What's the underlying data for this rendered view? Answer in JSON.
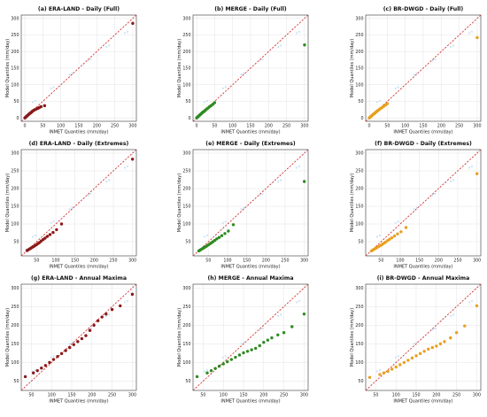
{
  "figure": {
    "diag_color": "#cc2222",
    "watermark_color": "#cfe6f7",
    "panel_titles": [
      "(a) ERA-LAND - Daily (Full)",
      "(b) MERGE - Daily (Full)",
      "(c) BR-DWGD - Daily (Full)",
      "(d) ERA-LAND - Daily (Extremes)",
      "(e) MERGE - Daily (Extremes)",
      "(f) BR-DWGD - Daily (Extremes)",
      "(g) ERA-LAND - Annual Maxima",
      "(h) MERGE - Annual Maxima",
      "(i) BR-DWGD - Annual Maxima"
    ]
  },
  "chart_data": [
    {
      "type": "scatter",
      "title": "(a) ERA-LAND - Daily (Full)",
      "xlabel": "INMET Quantiles (mm/day)",
      "ylabel": "Model Quantiles (mm/day)",
      "xlim": [
        -10,
        310
      ],
      "ylim": [
        -10,
        310
      ],
      "xticks": [
        0,
        50,
        100,
        150,
        200,
        250,
        300
      ],
      "yticks": [
        0,
        50,
        100,
        150,
        200,
        250,
        300
      ],
      "color": "#8b1a1a",
      "grid": true,
      "reference_line": "1:1",
      "series": [
        {
          "x": [
            0,
            2,
            4,
            6,
            8,
            10,
            12,
            14,
            16,
            18,
            20,
            22,
            25,
            28,
            32,
            36,
            40,
            45,
            55,
            300
          ],
          "y": [
            0,
            2,
            4,
            6,
            8,
            10,
            12,
            14,
            15,
            17,
            19,
            21,
            23,
            25,
            27,
            29,
            31,
            34,
            37,
            285
          ]
        }
      ]
    },
    {
      "type": "scatter",
      "title": "(b) MERGE - Daily (Full)",
      "xlabel": "INMET Quantiles (mm/day)",
      "ylabel": "Model Quantiles (mm/day)",
      "xlim": [
        -10,
        310
      ],
      "ylim": [
        -10,
        310
      ],
      "xticks": [
        0,
        50,
        100,
        150,
        200,
        250,
        300
      ],
      "yticks": [
        0,
        50,
        100,
        150,
        200,
        250,
        300
      ],
      "color": "#2e8b22",
      "grid": true,
      "reference_line": "1:1",
      "series": [
        {
          "x": [
            0,
            2,
            4,
            6,
            8,
            10,
            12,
            14,
            16,
            18,
            20,
            22,
            25,
            28,
            32,
            36,
            40,
            45,
            50,
            300
          ],
          "y": [
            0,
            2,
            4,
            6,
            8,
            10,
            12,
            14,
            16,
            18,
            19,
            21,
            24,
            27,
            30,
            34,
            37,
            41,
            46,
            220
          ]
        }
      ]
    },
    {
      "type": "scatter",
      "title": "(c) BR-DWGD - Daily (Full)",
      "xlabel": "INMET Quantiles (mm/day)",
      "ylabel": "Model Quantiles (mm/day)",
      "xlim": [
        -10,
        310
      ],
      "ylim": [
        -10,
        310
      ],
      "xticks": [
        0,
        50,
        100,
        150,
        200,
        250,
        300
      ],
      "yticks": [
        0,
        50,
        100,
        150,
        200,
        250,
        300
      ],
      "color": "#e8a020",
      "grid": true,
      "reference_line": "1:1",
      "series": [
        {
          "x": [
            0,
            2,
            4,
            6,
            8,
            10,
            12,
            14,
            16,
            18,
            20,
            22,
            25,
            28,
            32,
            36,
            40,
            45,
            50,
            300
          ],
          "y": [
            0,
            2,
            4,
            6,
            8,
            10,
            12,
            13,
            15,
            17,
            19,
            21,
            23,
            26,
            29,
            32,
            35,
            39,
            43,
            242
          ]
        }
      ]
    },
    {
      "type": "scatter",
      "title": "(d) ERA-LAND - Daily (Extremes)",
      "xlabel": "INMET Quantiles (mm/day)",
      "ylabel": "Model Quantiles (mm/day)",
      "xlim": [
        10,
        310
      ],
      "ylim": [
        10,
        310
      ],
      "xticks": [
        50,
        100,
        150,
        200,
        250,
        300
      ],
      "yticks": [
        50,
        100,
        150,
        200,
        250,
        300
      ],
      "color": "#8b1a1a",
      "grid": true,
      "reference_line": "1:1",
      "series": [
        {
          "x": [
            25,
            28,
            31,
            34,
            37,
            40,
            43,
            46,
            50,
            54,
            58,
            62,
            67,
            72,
            78,
            85,
            93,
            102,
            115,
            300
          ],
          "y": [
            25,
            27,
            29,
            31,
            33,
            35,
            37,
            39,
            42,
            45,
            48,
            52,
            56,
            60,
            65,
            70,
            76,
            84,
            100,
            283
          ]
        }
      ]
    },
    {
      "type": "scatter",
      "title": "(e) MERGE - Daily (Extremes)",
      "xlabel": "INMET Quantiles (mm/day)",
      "ylabel": "Model Quantiles (mm/day)",
      "xlim": [
        10,
        310
      ],
      "ylim": [
        10,
        310
      ],
      "xticks": [
        50,
        100,
        150,
        200,
        250,
        300
      ],
      "yticks": [
        50,
        100,
        150,
        200,
        250,
        300
      ],
      "color": "#2e8b22",
      "grid": true,
      "reference_line": "1:1",
      "series": [
        {
          "x": [
            25,
            28,
            31,
            34,
            37,
            40,
            43,
            46,
            50,
            54,
            58,
            62,
            67,
            72,
            78,
            85,
            93,
            102,
            115,
            300
          ],
          "y": [
            24,
            26,
            28,
            30,
            32,
            34,
            36,
            38,
            41,
            44,
            47,
            50,
            54,
            58,
            62,
            67,
            73,
            80,
            98,
            220
          ]
        }
      ]
    },
    {
      "type": "scatter",
      "title": "(f) BR-DWGD - Daily (Extremes)",
      "xlabel": "INMET Quantiles (mm/day)",
      "ylabel": "Model Quantiles (mm/day)",
      "xlim": [
        10,
        310
      ],
      "ylim": [
        10,
        310
      ],
      "xticks": [
        50,
        100,
        150,
        200,
        250,
        300
      ],
      "yticks": [
        50,
        100,
        150,
        200,
        250,
        300
      ],
      "color": "#e8a020",
      "grid": true,
      "reference_line": "1:1",
      "series": [
        {
          "x": [
            25,
            28,
            31,
            34,
            37,
            40,
            43,
            46,
            50,
            54,
            58,
            62,
            67,
            72,
            78,
            85,
            93,
            102,
            115,
            300
          ],
          "y": [
            24,
            26,
            28,
            30,
            32,
            34,
            36,
            38,
            40,
            43,
            46,
            49,
            53,
            57,
            61,
            66,
            72,
            78,
            90,
            242
          ]
        }
      ]
    },
    {
      "type": "scatter",
      "title": "(g) ERA-LAND - Annual Maxima",
      "xlabel": "INMET Quantiles (mm/day)",
      "ylabel": "Model Quantiles (mm/day)",
      "xlim": [
        25,
        310
      ],
      "ylim": [
        25,
        310
      ],
      "xticks": [
        50,
        100,
        150,
        200,
        250,
        300
      ],
      "yticks": [
        50,
        100,
        150,
        200,
        250,
        300
      ],
      "color": "#8b1a1a",
      "grid": true,
      "reference_line": "1:1",
      "series": [
        {
          "x": [
            35,
            55,
            65,
            75,
            85,
            95,
            105,
            115,
            125,
            135,
            145,
            155,
            165,
            175,
            185,
            195,
            205,
            215,
            225,
            235,
            250,
            270,
            300
          ],
          "y": [
            62,
            72,
            78,
            85,
            92,
            100,
            108,
            116,
            124,
            132,
            140,
            148,
            156,
            164,
            172,
            186,
            200,
            212,
            222,
            230,
            242,
            252,
            283
          ]
        }
      ]
    },
    {
      "type": "scatter",
      "title": "(h) MERGE - Annual Maxima",
      "xlabel": "INMET Quantiles (mm/day)",
      "ylabel": "Model Quantiles (mm/day)",
      "xlim": [
        25,
        310
      ],
      "ylim": [
        25,
        310
      ],
      "xticks": [
        50,
        100,
        150,
        200,
        250,
        300
      ],
      "yticks": [
        50,
        100,
        150,
        200,
        250,
        300
      ],
      "color": "#2e8b22",
      "grid": true,
      "reference_line": "1:1",
      "series": [
        {
          "x": [
            35,
            60,
            70,
            80,
            90,
            100,
            110,
            120,
            130,
            140,
            150,
            160,
            170,
            180,
            190,
            200,
            210,
            220,
            235,
            250,
            270,
            300
          ],
          "y": [
            62,
            72,
            78,
            84,
            90,
            96,
            102,
            108,
            114,
            120,
            126,
            130,
            134,
            138,
            145,
            154,
            160,
            166,
            174,
            180,
            196,
            230
          ]
        }
      ]
    },
    {
      "type": "scatter",
      "title": "(i) BR-DWGD - Annual Maxima",
      "xlabel": "INMET Quantiles (mm/day)",
      "ylabel": "Model Quantiles (mm/day)",
      "xlim": [
        25,
        310
      ],
      "ylim": [
        25,
        310
      ],
      "xticks": [
        50,
        100,
        150,
        200,
        250,
        300
      ],
      "yticks": [
        50,
        100,
        150,
        200,
        250,
        300
      ],
      "color": "#e8a020",
      "grid": true,
      "reference_line": "1:1",
      "series": [
        {
          "x": [
            35,
            60,
            70,
            80,
            90,
            100,
            110,
            120,
            130,
            140,
            150,
            160,
            170,
            180,
            190,
            200,
            210,
            220,
            235,
            250,
            270,
            300
          ],
          "y": [
            60,
            68,
            72,
            76,
            82,
            88,
            94,
            100,
            106,
            112,
            118,
            124,
            130,
            136,
            140,
            144,
            150,
            156,
            166,
            180,
            198,
            252
          ]
        }
      ]
    }
  ]
}
